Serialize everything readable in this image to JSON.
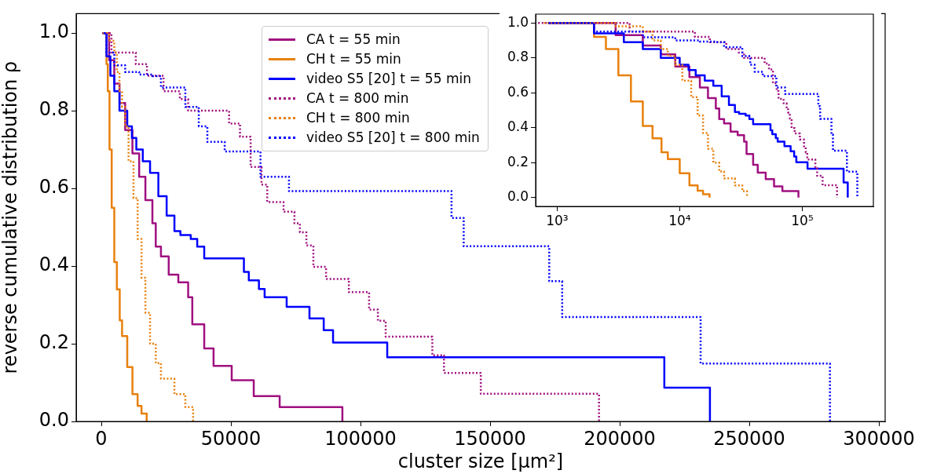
{
  "chart_data": [
    {
      "type": "step",
      "xlabel": "cluster size [μm²]",
      "ylabel": "reverse cumulative distribution ρ",
      "xlim": [
        -9700,
        302400
      ],
      "ylim": [
        0,
        1.05
      ],
      "xticks": [
        0,
        50000,
        100000,
        150000,
        200000,
        250000,
        300000
      ],
      "yticks": [
        {
          "value": 0,
          "label": "0.0"
        },
        {
          "value": 0.2,
          "label": "0.2"
        },
        {
          "value": 0.4,
          "label": "0.4"
        },
        {
          "value": 0.6,
          "label": "0.6"
        },
        {
          "value": 0.8,
          "label": "0.8"
        },
        {
          "value": 1,
          "label": "1.0"
        }
      ],
      "grid": false,
      "legend": "top",
      "series": [
        {
          "name": "CA t = 55 min",
          "color": "#a01080",
          "line_style": "solid",
          "x": [
            1000,
            3000,
            5000,
            7000,
            9200,
            12000,
            14600,
            17000,
            19700,
            21000,
            23000,
            26000,
            29700,
            33500,
            35100,
            39700,
            43300,
            50300,
            58800,
            68800,
            93000
          ],
          "values": [
            1.0,
            0.93,
            0.87,
            0.82,
            0.75,
            0.69,
            0.63,
            0.57,
            0.51,
            0.45,
            0.425,
            0.378,
            0.358,
            0.32,
            0.25,
            0.188,
            0.143,
            0.106,
            0.065,
            0.037,
            0
          ]
        },
        {
          "name": "CH t = 55 min",
          "color": "#e8800c",
          "line_style": "solid",
          "x": [
            850,
            2000,
            2500,
            3160,
            4000,
            5000,
            6000,
            7100,
            8000,
            10000,
            12000,
            14000,
            15500,
            17500
          ],
          "values": [
            1.0,
            0.92,
            0.85,
            0.7,
            0.55,
            0.41,
            0.34,
            0.26,
            0.22,
            0.14,
            0.07,
            0.04,
            0.02,
            0
          ]
        },
        {
          "name": "video S5 [20] t = 55 min",
          "color": "#0000ff",
          "line_style": "solid",
          "x": [
            850,
            2000,
            3500,
            5000,
            7000,
            10000,
            11800,
            13500,
            16000,
            18800,
            22000,
            25200,
            28200,
            30500,
            34500,
            37000,
            39700,
            55000,
            56900,
            60800,
            63000,
            71500,
            80300,
            85800,
            89400,
            110300,
            217200,
            234800
          ],
          "values": [
            1.0,
            0.94,
            0.89,
            0.85,
            0.8,
            0.76,
            0.73,
            0.7,
            0.67,
            0.64,
            0.58,
            0.53,
            0.49,
            0.48,
            0.47,
            0.45,
            0.42,
            0.385,
            0.363,
            0.341,
            0.32,
            0.295,
            0.265,
            0.235,
            0.203,
            0.165,
            0.087,
            0
          ]
        },
        {
          "name": "CA t = 800 min",
          "color": "#a01080",
          "line_style": "dotted",
          "x": [
            300,
            3900,
            13300,
            17600,
            24000,
            30300,
            33500,
            49300,
            53500,
            57600,
            61800,
            64000,
            70300,
            74500,
            76600,
            79100,
            81800,
            86700,
            95500,
            103300,
            106700,
            109700,
            127700,
            132200,
            146400,
            192000
          ],
          "values": [
            1.0,
            0.95,
            0.92,
            0.89,
            0.85,
            0.83,
            0.8,
            0.767,
            0.733,
            0.655,
            0.61,
            0.565,
            0.54,
            0.51,
            0.487,
            0.453,
            0.398,
            0.367,
            0.333,
            0.288,
            0.259,
            0.218,
            0.17,
            0.125,
            0.071,
            0
          ]
        },
        {
          "name": "CH t = 800 min",
          "color": "#e8800c",
          "line_style": "dotted",
          "x": [
            550,
            3000,
            5000,
            6000,
            7000,
            8000,
            9200,
            10500,
            12400,
            14000,
            15500,
            17000,
            18800,
            21000,
            23000,
            28200,
            32400,
            35400
          ],
          "values": [
            1.0,
            0.98,
            0.95,
            0.9,
            0.85,
            0.81,
            0.76,
            0.67,
            0.575,
            0.47,
            0.37,
            0.28,
            0.2,
            0.15,
            0.11,
            0.07,
            0.037,
            0
          ]
        },
        {
          "name": "video S5 [20] t = 800 min",
          "color": "#0000ff",
          "line_style": "dotted",
          "x": [
            850,
            2000,
            5000,
            9200,
            14600,
            19700,
            23000,
            32400,
            37600,
            40900,
            47600,
            61400,
            72400,
            135100,
            139800,
            172800,
            177800,
            231200,
            281100
          ],
          "values": [
            1.0,
            0.95,
            0.917,
            0.9,
            0.893,
            0.889,
            0.86,
            0.81,
            0.76,
            0.72,
            0.695,
            0.63,
            0.593,
            0.524,
            0.451,
            0.361,
            0.269,
            0.149,
            0
          ]
        }
      ]
    },
    {
      "type": "step",
      "log": "x",
      "xlim": [
        668,
        380000
      ],
      "ylim": [
        -0.05,
        1.05
      ],
      "xticks": [
        {
          "value": 1000,
          "label": "10³"
        },
        {
          "value": 10000,
          "label": "10⁴"
        },
        {
          "value": 100000,
          "label": "10⁵"
        }
      ],
      "yticks": [
        {
          "value": 0,
          "label": "0.0"
        },
        {
          "value": 0.2,
          "label": "0.2"
        },
        {
          "value": 0.4,
          "label": "0.4"
        },
        {
          "value": 0.6,
          "label": "0.6"
        },
        {
          "value": 0.8,
          "label": "0.8"
        },
        {
          "value": 1,
          "label": "1.0"
        }
      ],
      "grid": false,
      "series": [
        {
          "color": "#a01080",
          "line_style": "solid",
          "x": [
            850,
            1000,
            3000,
            5000,
            7000,
            9200,
            12000,
            14600,
            17000,
            19700,
            21000,
            23000,
            26000,
            29700,
            33500,
            35100,
            39700,
            43300,
            50300,
            58800,
            68800,
            93000
          ],
          "values": [
            1.0,
            1.0,
            0.93,
            0.87,
            0.82,
            0.75,
            0.69,
            0.63,
            0.57,
            0.51,
            0.45,
            0.425,
            0.378,
            0.358,
            0.32,
            0.25,
            0.188,
            0.143,
            0.106,
            0.065,
            0.037,
            0
          ]
        },
        {
          "color": "#e8800c",
          "line_style": "solid",
          "x": [
            850,
            2000,
            2500,
            3160,
            4000,
            5000,
            6000,
            7100,
            8000,
            10000,
            12000,
            14000,
            15500,
            17500
          ],
          "values": [
            1.0,
            0.92,
            0.85,
            0.7,
            0.55,
            0.41,
            0.34,
            0.26,
            0.22,
            0.14,
            0.07,
            0.04,
            0.02,
            0
          ]
        },
        {
          "color": "#0000ff",
          "line_style": "solid",
          "x": [
            850,
            2000,
            3500,
            5000,
            7000,
            10000,
            11800,
            13500,
            16000,
            18800,
            22000,
            25200,
            28200,
            30500,
            34500,
            37000,
            39700,
            55000,
            56900,
            60800,
            63000,
            71500,
            80300,
            85800,
            89400,
            110300,
            217200,
            234800
          ],
          "values": [
            1.0,
            0.94,
            0.89,
            0.85,
            0.8,
            0.76,
            0.73,
            0.7,
            0.67,
            0.64,
            0.58,
            0.53,
            0.49,
            0.48,
            0.47,
            0.45,
            0.42,
            0.385,
            0.363,
            0.341,
            0.32,
            0.295,
            0.265,
            0.235,
            0.203,
            0.165,
            0.087,
            0
          ]
        },
        {
          "color": "#a01080",
          "line_style": "dotted",
          "x": [
            700,
            3900,
            13300,
            17600,
            24000,
            30300,
            33500,
            49300,
            53500,
            57600,
            61800,
            64000,
            70300,
            74500,
            76600,
            79100,
            81800,
            86700,
            95500,
            103300,
            106700,
            109700,
            127700,
            132200,
            146400,
            192000
          ],
          "values": [
            1.0,
            0.95,
            0.92,
            0.89,
            0.85,
            0.83,
            0.8,
            0.767,
            0.733,
            0.655,
            0.61,
            0.565,
            0.54,
            0.51,
            0.487,
            0.453,
            0.398,
            0.367,
            0.333,
            0.288,
            0.259,
            0.218,
            0.17,
            0.125,
            0.071,
            0
          ]
        },
        {
          "color": "#e8800c",
          "line_style": "dotted",
          "x": [
            780,
            3000,
            5000,
            6000,
            7000,
            8000,
            9200,
            10500,
            12400,
            14000,
            15500,
            17000,
            18800,
            21000,
            23000,
            28200,
            32400,
            35400
          ],
          "values": [
            1.0,
            0.98,
            0.95,
            0.9,
            0.85,
            0.81,
            0.76,
            0.67,
            0.575,
            0.47,
            0.37,
            0.28,
            0.2,
            0.15,
            0.11,
            0.07,
            0.037,
            0
          ]
        },
        {
          "color": "#0000ff",
          "line_style": "dotted",
          "x": [
            850,
            2000,
            5000,
            9200,
            14600,
            19700,
            23000,
            32400,
            37600,
            40900,
            47600,
            61400,
            72400,
            135100,
            139800,
            172800,
            177800,
            231200,
            281100
          ],
          "values": [
            1.0,
            0.95,
            0.917,
            0.9,
            0.893,
            0.889,
            0.86,
            0.81,
            0.76,
            0.72,
            0.695,
            0.63,
            0.593,
            0.524,
            0.451,
            0.361,
            0.269,
            0.149,
            0
          ]
        }
      ]
    }
  ]
}
